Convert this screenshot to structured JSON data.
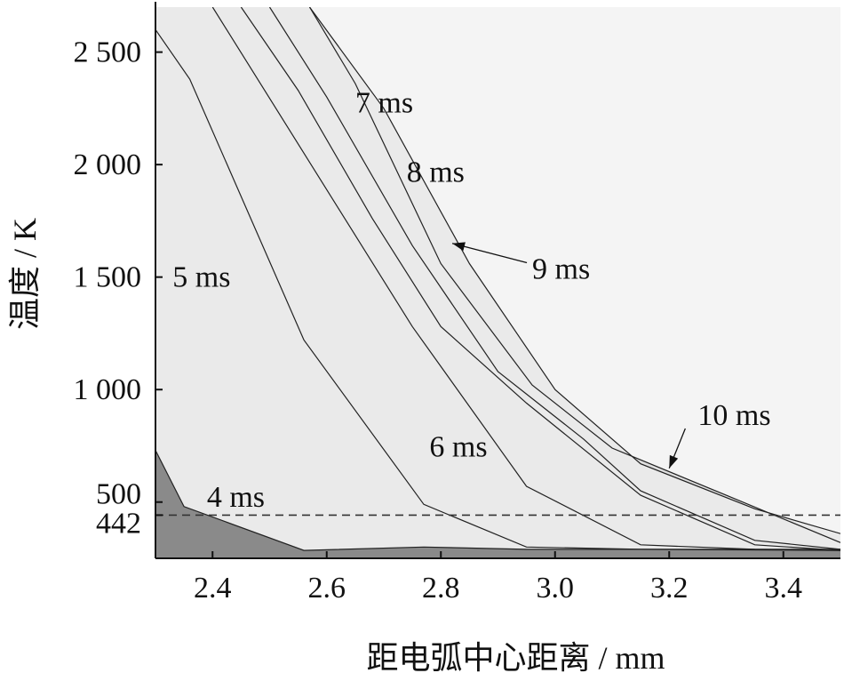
{
  "chart_data": {
    "type": "area",
    "title": "",
    "xlabel": "距电弧中心距离 / mm",
    "ylabel": "温度 / K",
    "xlim": [
      2.3,
      3.5
    ],
    "ylim": [
      250,
      2700
    ],
    "xticks": [
      "2.4",
      "2.6",
      "2.8",
      "3.0",
      "3.2",
      "3.4"
    ],
    "xtick_values": [
      2.4,
      2.6,
      2.8,
      3.0,
      3.2,
      3.4
    ],
    "yticks": [
      "442",
      "500",
      "1 000",
      "1 500",
      "2 000",
      "2 500"
    ],
    "ytick_values": [
      442,
      500,
      1000,
      1500,
      2000,
      2500
    ],
    "reference_line": {
      "y": 442,
      "style": "dashed"
    },
    "grid": false,
    "series": [
      {
        "name": "4 ms",
        "fill": "#9a9a9a",
        "x": [
          2.3,
          2.35,
          2.56,
          2.77,
          2.95,
          3.5
        ],
        "y": [
          730,
          480,
          285,
          300,
          290,
          290
        ]
      },
      {
        "name": "5 ms",
        "fill": "#a8a8a8",
        "x": [
          2.3,
          2.36,
          2.56,
          2.77,
          2.95,
          3.15,
          3.5
        ],
        "y": [
          2600,
          2380,
          1220,
          490,
          300,
          290,
          285
        ]
      },
      {
        "name": "6 ms",
        "fill": "#b7b7b7",
        "x": [
          2.4,
          2.75,
          2.95,
          3.15,
          3.35,
          3.5
        ],
        "y": [
          2700,
          1280,
          570,
          310,
          290,
          285
        ]
      },
      {
        "name": "7 ms",
        "fill": "#c6c6c6",
        "x": [
          2.45,
          2.55,
          2.68,
          2.8,
          2.95,
          3.15,
          3.35,
          3.5
        ],
        "y": [
          2700,
          2330,
          1760,
          1280,
          940,
          530,
          310,
          285
        ]
      },
      {
        "name": "8 ms",
        "fill": "#d3d3d3",
        "x": [
          2.5,
          2.6,
          2.75,
          2.9,
          3.05,
          3.15,
          3.35,
          3.5
        ],
        "y": [
          2700,
          2300,
          1640,
          1080,
          780,
          550,
          330,
          290
        ]
      },
      {
        "name": "9 ms",
        "fill": "#dfdfdf",
        "x": [
          2.57,
          2.65,
          2.8,
          2.96,
          3.1,
          3.3,
          3.5
        ],
        "y": [
          2700,
          2360,
          1560,
          1020,
          740,
          530,
          320
        ]
      },
      {
        "name": "10 ms",
        "fill": "#eaeaea",
        "x": [
          2.57,
          2.7,
          2.85,
          3.0,
          3.15,
          3.35,
          3.5
        ],
        "y": [
          2700,
          2250,
          1560,
          1000,
          670,
          470,
          360
        ]
      }
    ],
    "annotations": [
      {
        "text": "4 ms",
        "x": 2.39,
        "y": 527
      },
      {
        "text": "5 ms",
        "x": 2.33,
        "y": 1505
      },
      {
        "text": "6 ms",
        "x": 2.78,
        "y": 749
      },
      {
        "text": "7 ms",
        "x": 2.65,
        "y": 2280,
        "arrow_to": [
          2.64,
          2285
        ]
      },
      {
        "text": "8 ms",
        "x": 2.74,
        "y": 1970,
        "arrow_to": [
          2.73,
          1980
        ]
      },
      {
        "text": "9 ms",
        "x": 2.96,
        "y": 1540,
        "arrow_to": [
          2.82,
          1650
        ]
      },
      {
        "text": "10 ms",
        "x": 3.25,
        "y": 890,
        "arrow_to": [
          3.2,
          650
        ]
      }
    ]
  }
}
